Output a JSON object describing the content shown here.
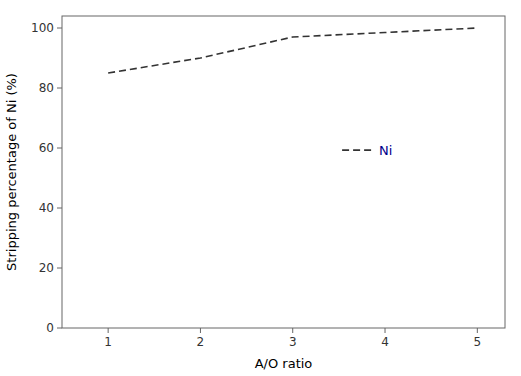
{
  "chart_data": {
    "type": "line",
    "x_label": "A/O ratio",
    "y_label": "Stripping percentage of Ni (%)",
    "x": [
      1,
      1.5,
      2,
      3,
      4,
      5
    ],
    "series": [
      {
        "name": "Ni",
        "color": "#333333",
        "line_style": "dashed",
        "values": [
          85.0,
          87.5,
          90.0,
          97.0,
          98.5,
          100.0
        ]
      }
    ],
    "xlim": [
      0.5,
      5.3
    ],
    "xticks": [
      1,
      2,
      3,
      4,
      5
    ],
    "ylim": [
      0,
      104
    ],
    "yticks": [
      0,
      20,
      40,
      60,
      80,
      100
    ],
    "grid": false,
    "legend": "center"
  }
}
